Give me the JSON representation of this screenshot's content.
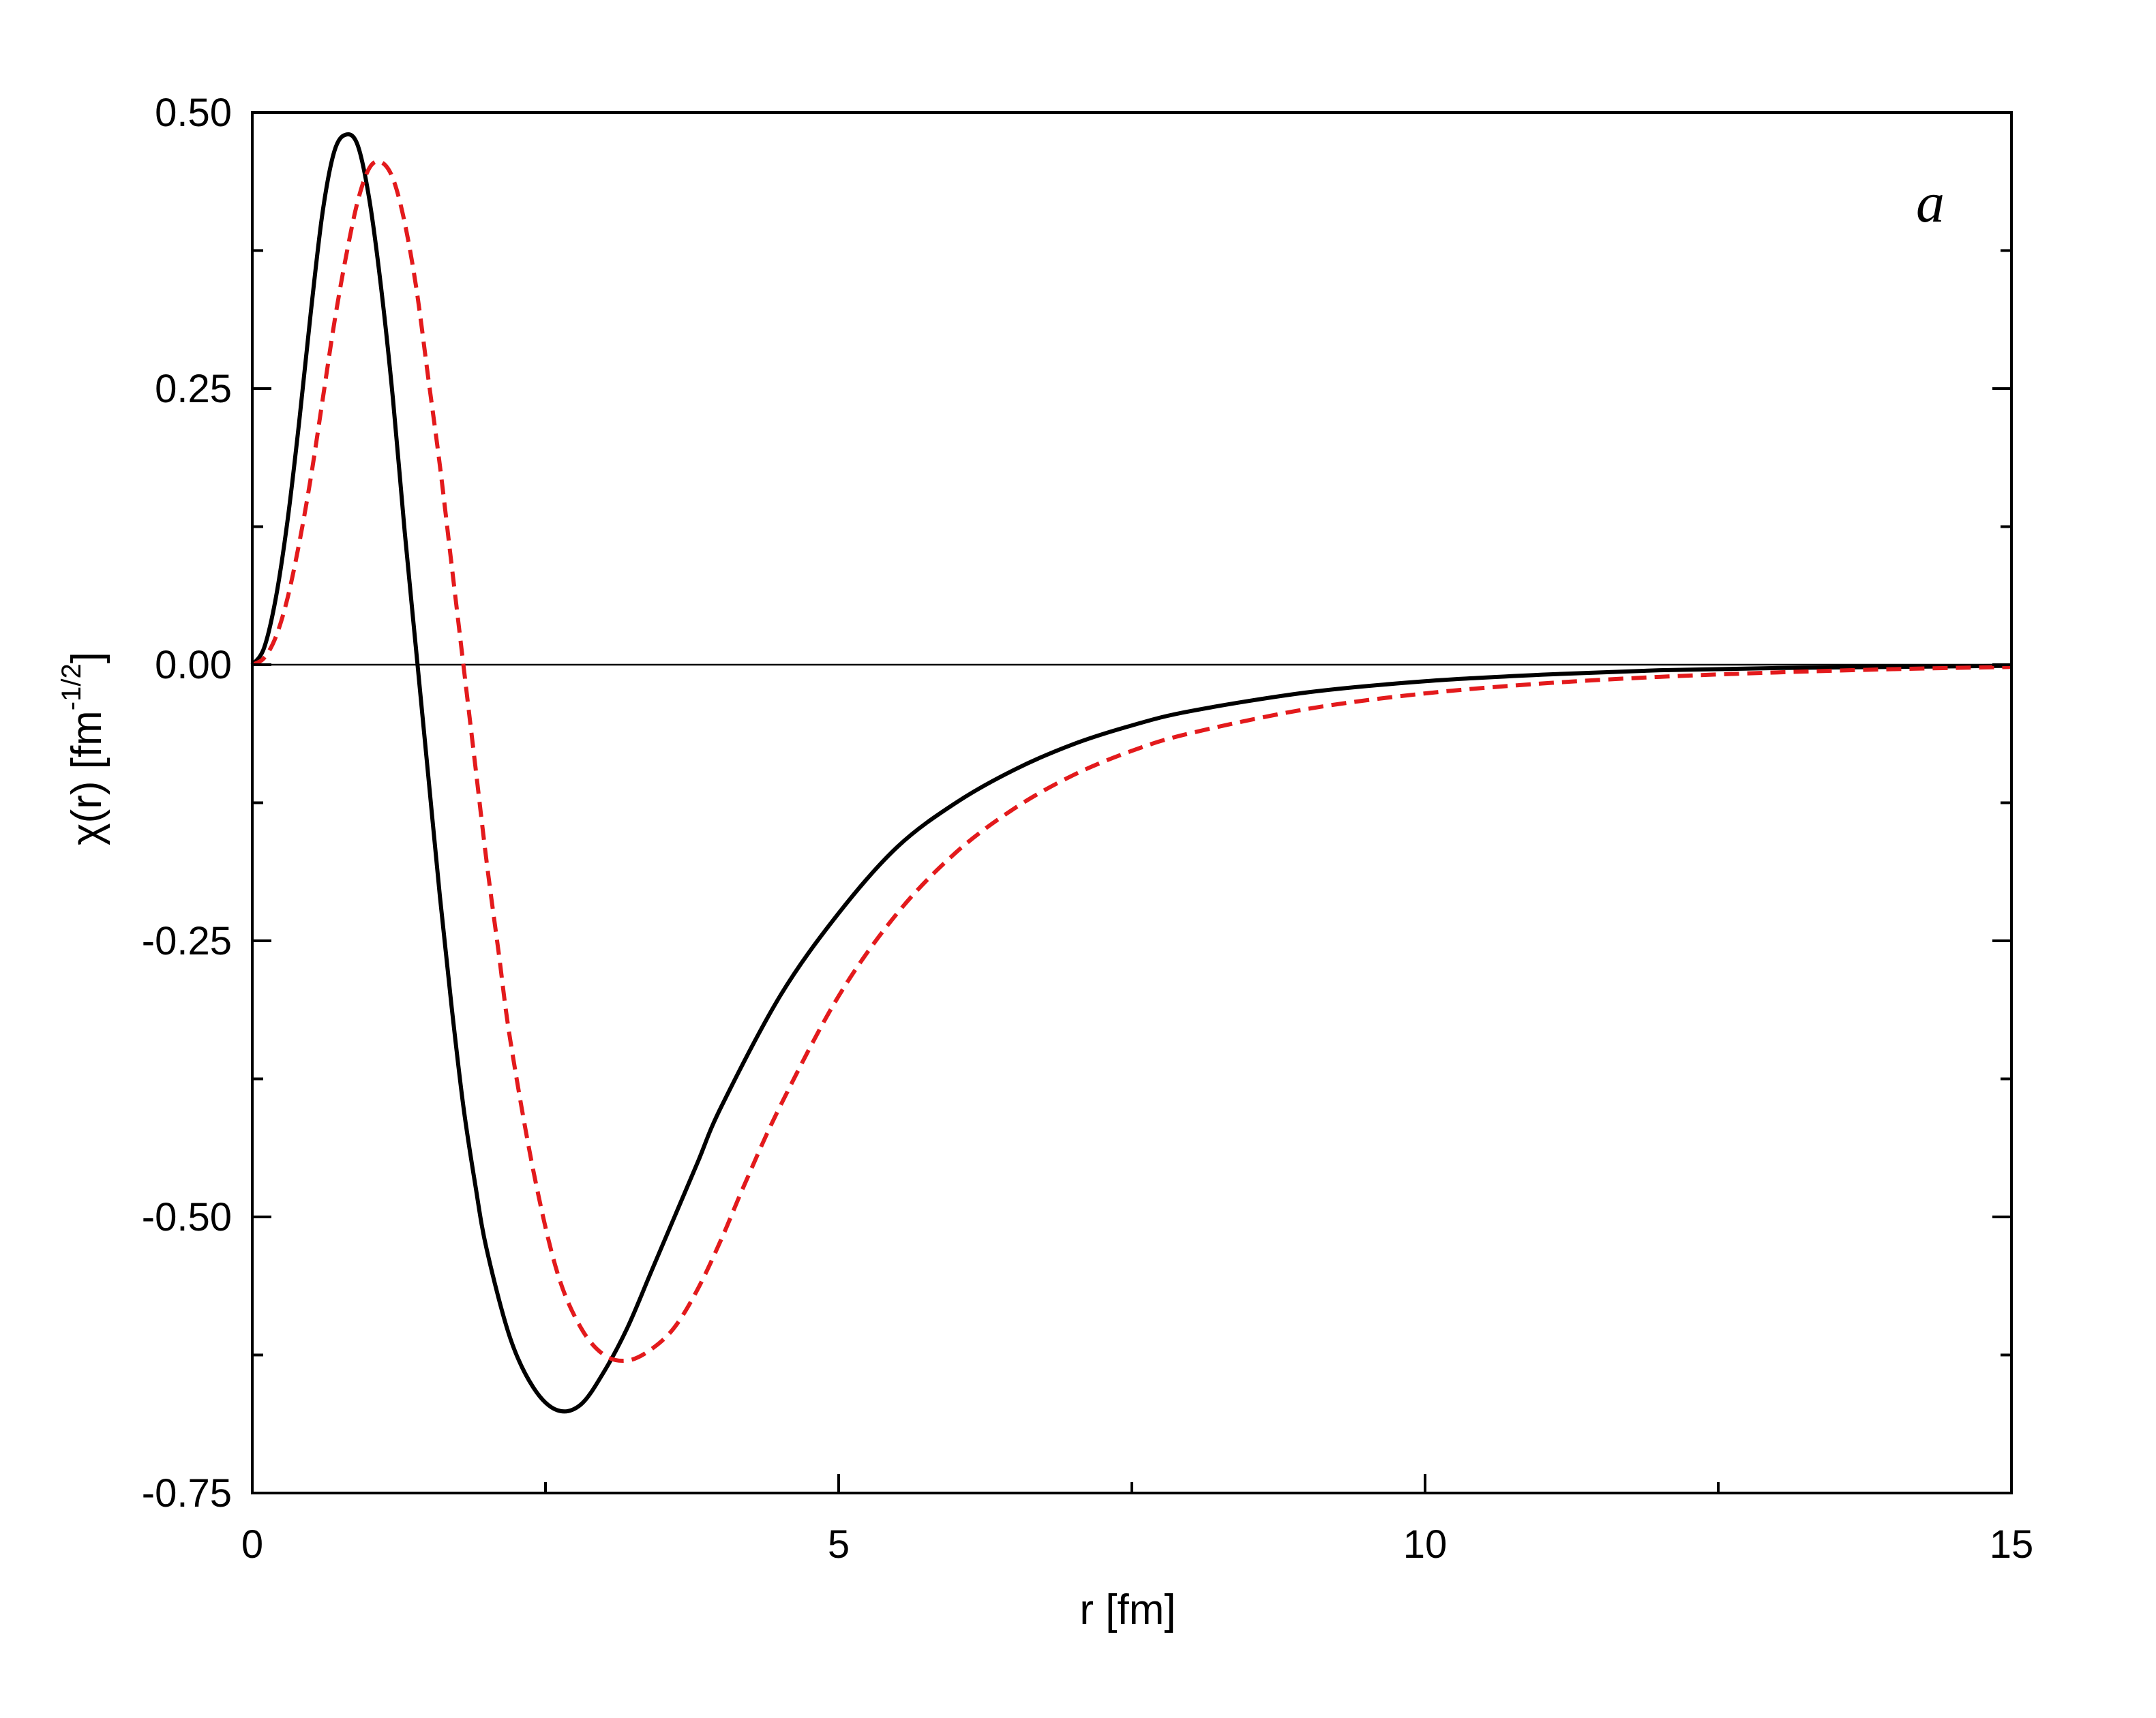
{
  "chart_data": {
    "type": "line",
    "title": "",
    "xlabel": "r [fm]",
    "ylabel": "χ(r) [fm",
    "ylabel_superscript": "-1/2",
    "ylabel_suffix": "]",
    "xlim": [
      0,
      15
    ],
    "ylim": [
      -0.75,
      0.5
    ],
    "x_ticks": [
      0,
      5,
      10,
      15
    ],
    "x_tick_labels": [
      "0",
      "5",
      "10",
      "15"
    ],
    "y_ticks": [
      0.5,
      0.25,
      0.0,
      -0.25,
      -0.5,
      -0.75
    ],
    "y_tick_labels": [
      "0.50",
      "0.25",
      "0.00",
      "-0.25",
      "-0.50",
      "-0.75"
    ],
    "annotation": "a",
    "grid": false,
    "zero_line": true,
    "series": [
      {
        "style": "solid",
        "color": "#000000",
        "x": [
          0,
          0.1,
          0.2,
          0.3,
          0.4,
          0.5,
          0.6,
          0.7,
          0.8,
          0.9,
          1.0,
          1.1,
          1.2,
          1.3,
          1.4,
          1.5,
          1.6,
          1.7,
          1.8,
          1.9,
          2.0,
          2.2,
          2.4,
          2.6,
          2.8,
          3.0,
          3.2,
          3.4,
          3.6,
          3.8,
          4.0,
          4.5,
          5.0,
          5.5,
          6.0,
          6.5,
          7.0,
          7.5,
          8.0,
          9.0,
          10.0,
          11.0,
          12.0,
          13.0,
          14.0,
          15.0
        ],
        "y": [
          0,
          0.015,
          0.06,
          0.13,
          0.22,
          0.32,
          0.41,
          0.465,
          0.48,
          0.47,
          0.42,
          0.34,
          0.24,
          0.12,
          0.01,
          -0.1,
          -0.21,
          -0.31,
          -0.4,
          -0.47,
          -0.53,
          -0.61,
          -0.655,
          -0.675,
          -0.67,
          -0.64,
          -0.6,
          -0.55,
          -0.5,
          -0.45,
          -0.4,
          -0.3,
          -0.225,
          -0.165,
          -0.125,
          -0.095,
          -0.072,
          -0.055,
          -0.042,
          -0.025,
          -0.015,
          -0.009,
          -0.005,
          -0.003,
          -0.002,
          -0.001
        ]
      },
      {
        "style": "dashed",
        "color": "#e31a1c",
        "x": [
          0,
          0.1,
          0.2,
          0.3,
          0.4,
          0.5,
          0.6,
          0.7,
          0.8,
          0.9,
          1.0,
          1.1,
          1.2,
          1.3,
          1.4,
          1.5,
          1.6,
          1.7,
          1.8,
          1.9,
          2.0,
          2.1,
          2.2,
          2.4,
          2.6,
          2.8,
          3.0,
          3.2,
          3.4,
          3.6,
          3.8,
          4.0,
          4.2,
          4.5,
          5.0,
          5.5,
          6.0,
          6.5,
          7.0,
          7.5,
          8.0,
          9.0,
          10.0,
          11.0,
          12.0,
          13.0,
          14.0,
          15.0
        ],
        "y": [
          0,
          0.006,
          0.025,
          0.06,
          0.11,
          0.17,
          0.24,
          0.31,
          0.37,
          0.42,
          0.45,
          0.455,
          0.44,
          0.4,
          0.34,
          0.26,
          0.18,
          0.09,
          0.0,
          -0.09,
          -0.18,
          -0.26,
          -0.34,
          -0.46,
          -0.55,
          -0.6,
          -0.625,
          -0.63,
          -0.62,
          -0.6,
          -0.565,
          -0.52,
          -0.47,
          -0.4,
          -0.3,
          -0.225,
          -0.17,
          -0.13,
          -0.1,
          -0.078,
          -0.062,
          -0.04,
          -0.026,
          -0.017,
          -0.011,
          -0.007,
          -0.004,
          -0.002
        ]
      }
    ]
  }
}
